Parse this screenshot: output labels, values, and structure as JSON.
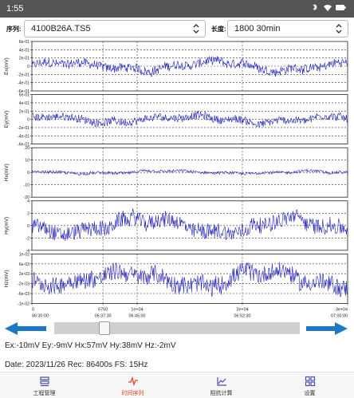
{
  "status_bar": {
    "time": "1:55",
    "icons": [
      "bluetooth-icon",
      "wifi-icon",
      "battery-icon"
    ]
  },
  "controls": {
    "series_label": "序列:",
    "series_value": "4100B26A.TS5",
    "length_label": "长度:",
    "length_value": "1800 30min"
  },
  "colors": {
    "trace": "#2222bb",
    "arrow": "#1e78c8",
    "active_tab": "#e0442f",
    "status_bar": "#555555"
  },
  "chart_data": [
    {
      "type": "line",
      "ylabel": "Ex(mV)",
      "ytick_labels": [
        "6e-01",
        "4e-01",
        "2e-01",
        "0",
        "-2e-01",
        "-4e-01",
        "-6e-01"
      ],
      "ylim": [
        -0.6,
        0.6
      ],
      "amplitude": 0.14
    },
    {
      "type": "line",
      "ylabel": "Ey(mV)",
      "ytick_labels": [
        "6e-01",
        "4e-01",
        "2e-01",
        "0",
        "-2e-01",
        "-4e-01",
        "-6e-01"
      ],
      "ylim": [
        -0.6,
        0.6
      ],
      "amplitude": 0.12
    },
    {
      "type": "line",
      "ylabel": "Hx(mV)",
      "ytick_labels": [
        "20",
        "10",
        "0",
        "-10",
        "-20"
      ],
      "ylim": [
        -20,
        20
      ],
      "amplitude": 1.5
    },
    {
      "type": "line",
      "ylabel": "Hy(mV)",
      "ytick_labels": [
        "4",
        "2",
        "0",
        "-2",
        "-4"
      ],
      "ylim": [
        -4,
        4
      ],
      "amplitude": 1.6
    },
    {
      "type": "line",
      "ylabel": "Hz(mV)",
      "ytick_labels": [
        "1e-02",
        "6e-03",
        "2e-03",
        "-2e-03",
        "-6e-03",
        "-1e-02"
      ],
      "ylim": [
        -0.01,
        0.01
      ],
      "amplitude": 0.0045
    }
  ],
  "x_axis": {
    "xlim": [
      0,
      30000
    ],
    "ticks": [
      0,
      6750,
      10000,
      20000,
      30000
    ],
    "tick_labels": [
      "0",
      "6750",
      "1e+04",
      "2e+04",
      "3e+04"
    ],
    "time_labels": [
      "06:30:00",
      "06:37:30",
      "06:45:00",
      "06:52:30",
      "07:00:00"
    ],
    "grid": true
  },
  "slider": {
    "position": 0.19,
    "left_arrow": "arrow-left-icon",
    "right_arrow": "arrow-right-icon"
  },
  "readouts": {
    "values": "Ex:-10mV Ey:-9mV Hx:57mV Hy:38mV Hz:-2mV",
    "meta": "Date:  2023/11/26  Rec:  86400s  FS:  15Hz"
  },
  "nav": {
    "items": [
      {
        "label": "工程管理",
        "icon": "folder-list-icon",
        "active": false
      },
      {
        "label": "时间序列",
        "icon": "waveform-icon",
        "active": true
      },
      {
        "label": "阻抗计算",
        "icon": "line-chart-icon",
        "active": false
      },
      {
        "label": "设置",
        "icon": "grid-icon",
        "active": false
      }
    ]
  }
}
